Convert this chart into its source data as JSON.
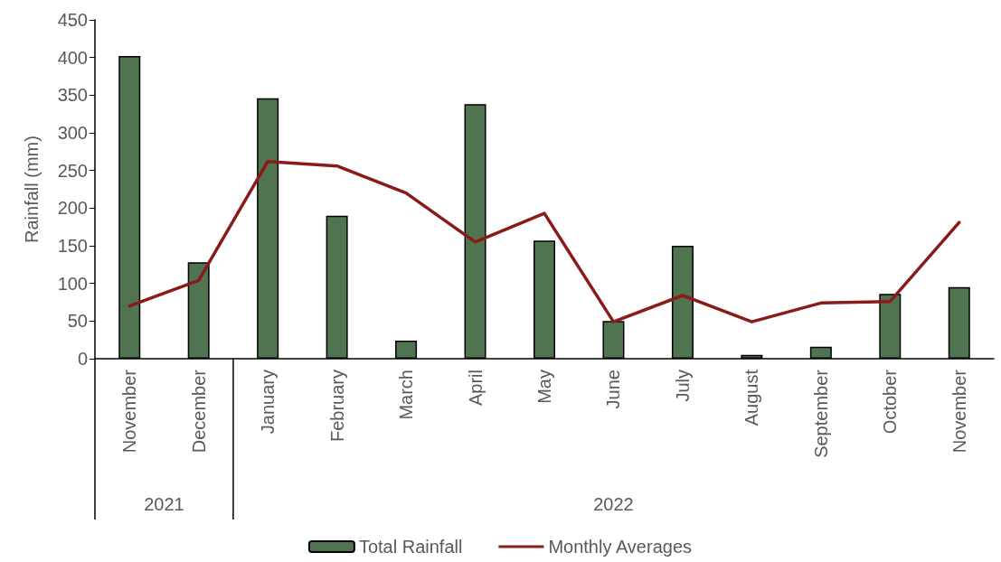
{
  "chart_data": {
    "type": "bar",
    "ylabel": "Rainfall (mm)",
    "categories": [
      "November",
      "December",
      "January",
      "February",
      "March",
      "April",
      "May",
      "June",
      "July",
      "August",
      "September",
      "October",
      "November"
    ],
    "series": [
      {
        "name": "Total Rainfall",
        "color": "#517450",
        "values": [
          402,
          128,
          346,
          190,
          24,
          338,
          157,
          50,
          150,
          5,
          16,
          86,
          95
        ]
      },
      {
        "name": "Monthly Averages",
        "type": "line",
        "color": "#8b1a1a",
        "values": [
          70,
          104,
          262,
          256,
          220,
          155,
          193,
          49,
          84,
          49,
          74,
          76,
          181
        ]
      }
    ],
    "annotations": [
      "2021",
      "2022"
    ],
    "ylim": [
      0,
      450
    ],
    "yticks": [
      0,
      50,
      100,
      150,
      200,
      250,
      300,
      350,
      400,
      450
    ],
    "grid": false,
    "legend": "bottom",
    "marker": "none",
    "line_style": "solid"
  }
}
